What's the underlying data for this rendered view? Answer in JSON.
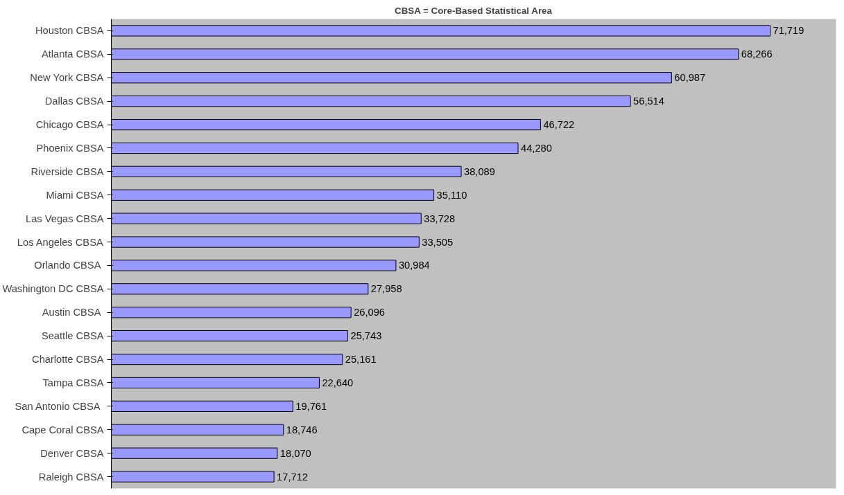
{
  "chart_data": {
    "type": "bar",
    "orientation": "horizontal",
    "title": "CBSA = Core-Based Statistical Area",
    "categories": [
      "Houston CBSA",
      "Atlanta CBSA",
      "New York CBSA",
      "Dallas CBSA",
      "Chicago CBSA",
      "Phoenix CBSA",
      "Riverside CBSA",
      "Miami CBSA",
      "Las Vegas CBSA",
      "Los Angeles CBSA",
      "Orlando  CBSA",
      "Washington DC CBSA",
      "Austin CBSA ",
      "Seattle CBSA",
      "Charlotte CBSA",
      "Tampa CBSA",
      "San Antonio  CBSA",
      "Cape Coral CBSA",
      "Denver CBSA",
      "Raleigh CBSA"
    ],
    "values": [
      71719,
      68266,
      60987,
      56514,
      46722,
      44280,
      38089,
      35110,
      33728,
      33505,
      30984,
      27958,
      26096,
      25743,
      25161,
      22640,
      19761,
      18746,
      18070,
      17712
    ],
    "value_labels": [
      "71,719",
      "68,266",
      "60,987",
      "56,514",
      "46,722",
      "44,280",
      "38,089",
      "35,110",
      "33,728",
      "33,505",
      "30,984",
      "27,958",
      "26,096",
      "25,743",
      "25,161",
      "22,640",
      "19,761",
      "18,746",
      "18,070",
      "17,712"
    ],
    "color": "#9999ff",
    "grid": false
  }
}
